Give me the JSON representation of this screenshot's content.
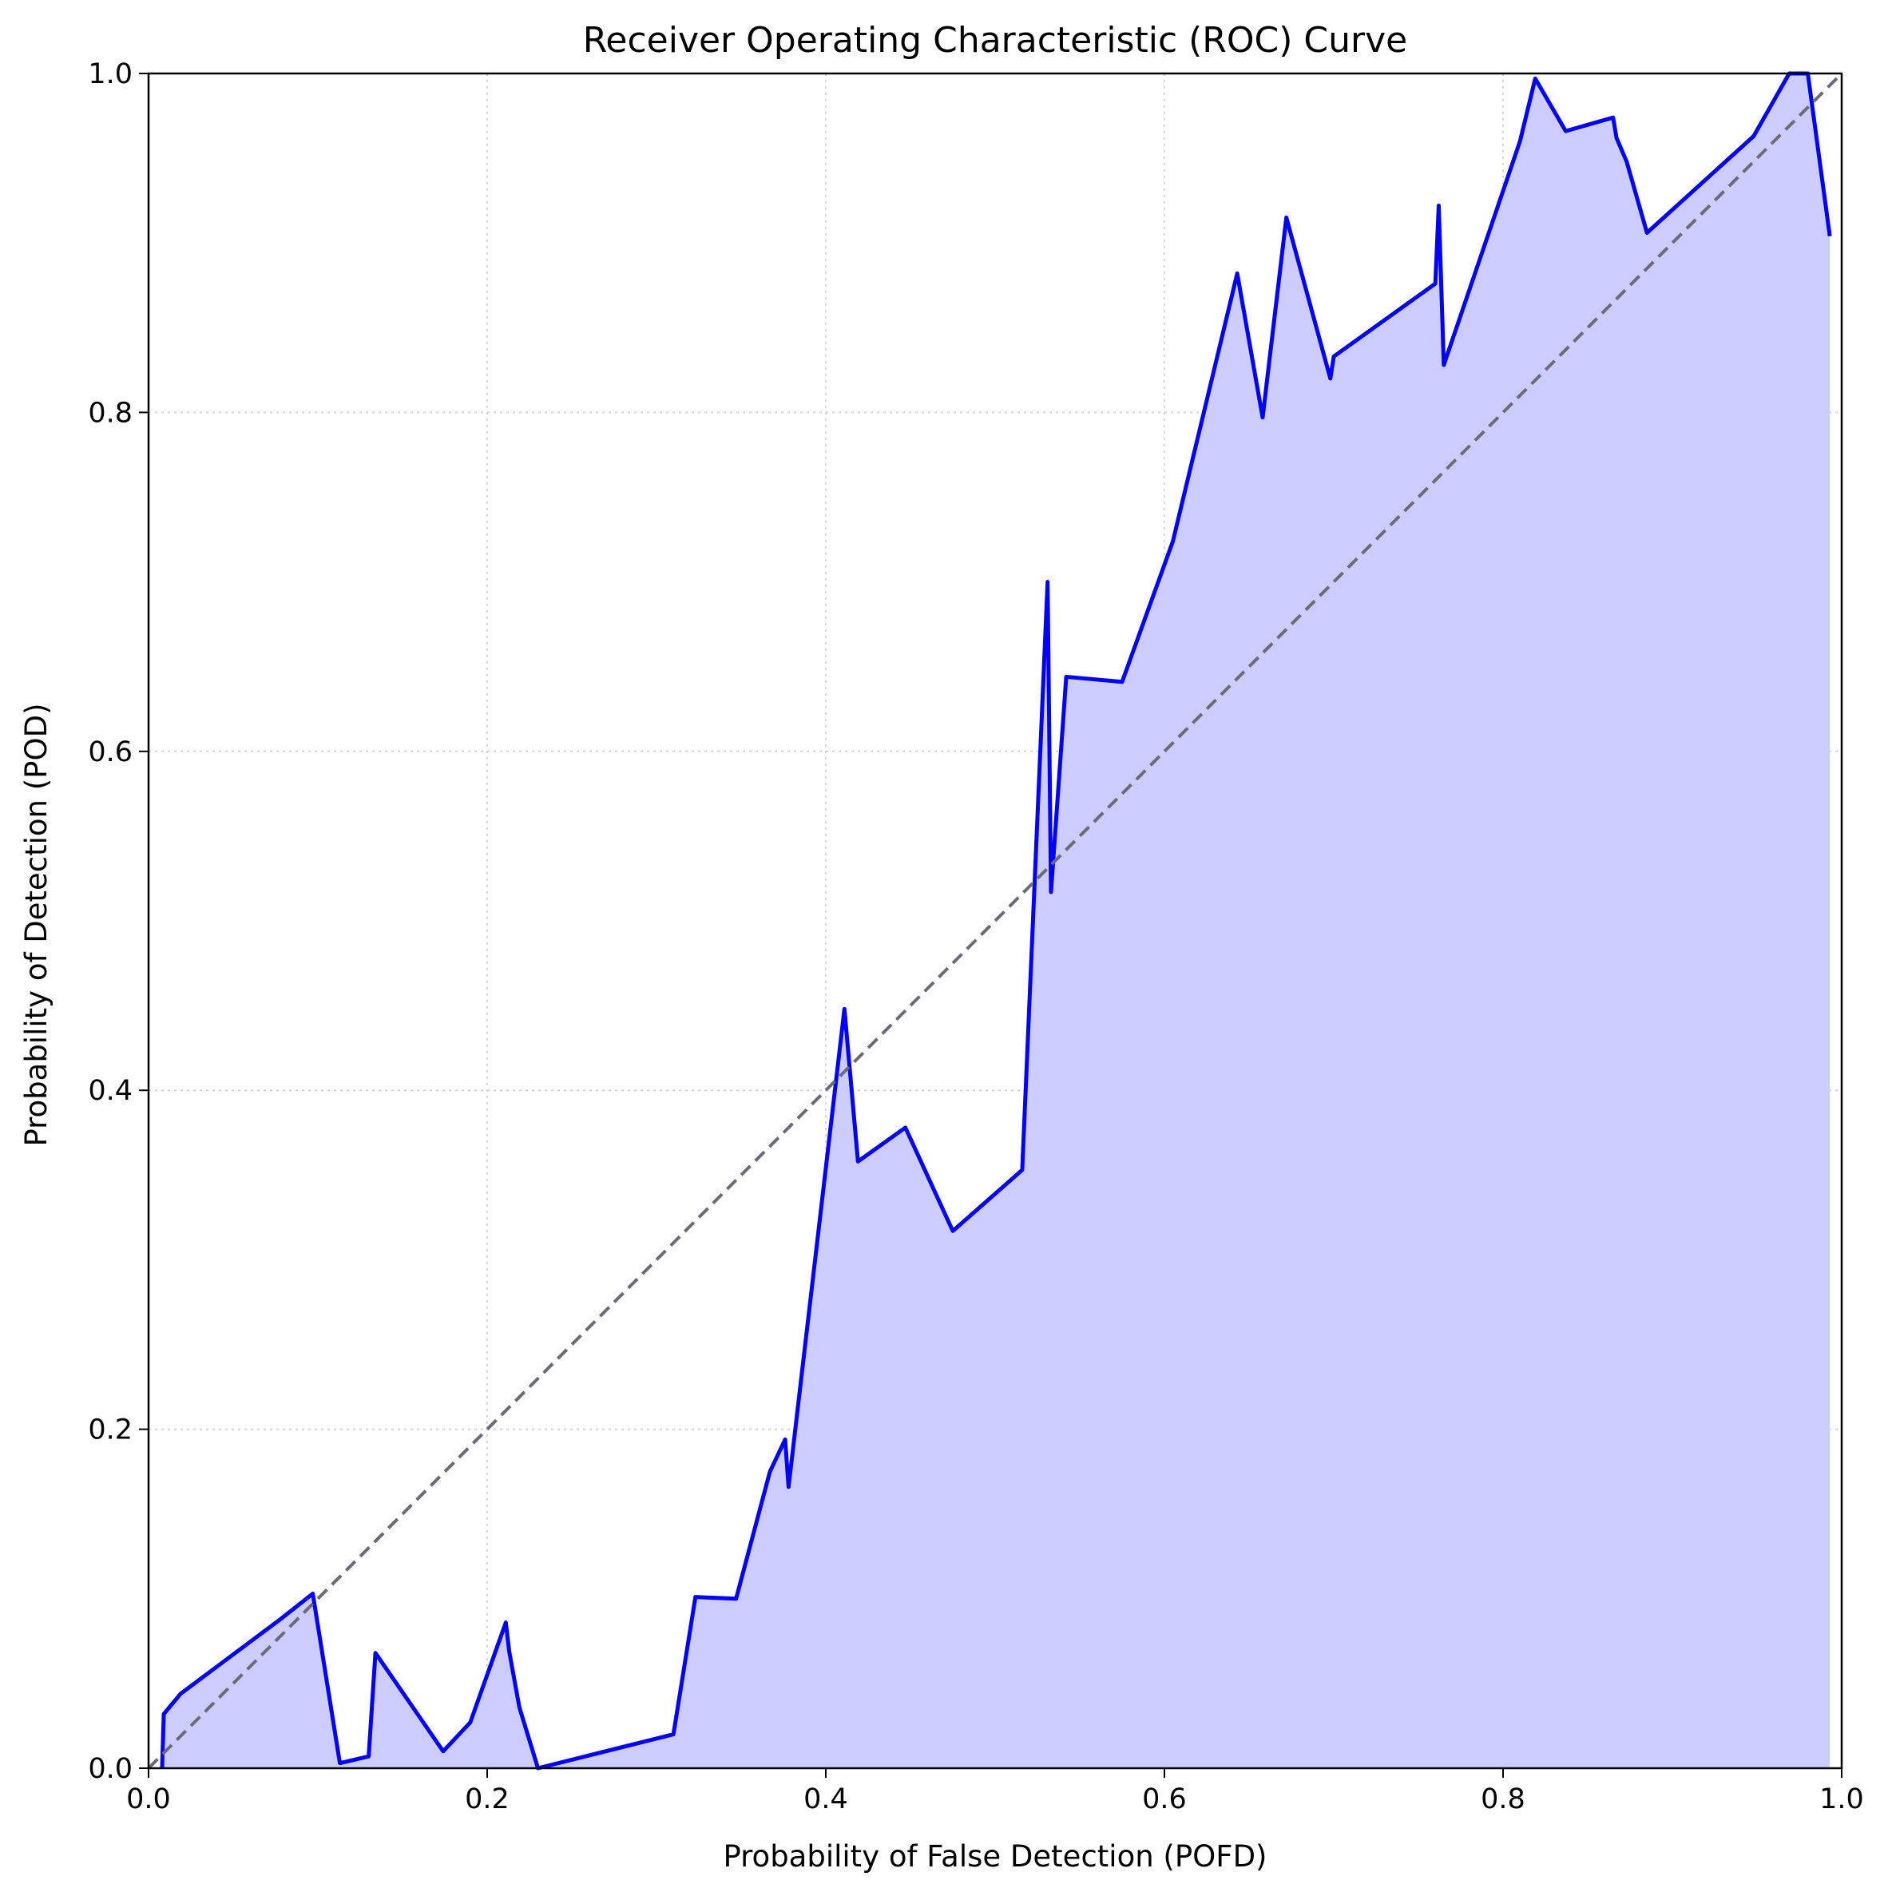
{
  "chart_data": {
    "type": "line",
    "title": "Receiver Operating Characteristic (ROC) Curve",
    "xlabel": "Probability of False Detection (POFD)",
    "ylabel": "Probability of Detection (POD)",
    "xlim": [
      0,
      1
    ],
    "ylim": [
      0,
      1
    ],
    "x_ticks": [
      "0.0",
      "0.2",
      "0.4",
      "0.6",
      "0.8",
      "1.0"
    ],
    "y_ticks": [
      "0.0",
      "0.2",
      "0.4",
      "0.6",
      "0.8",
      "1.0"
    ],
    "grid": true,
    "legend": false,
    "series": [
      {
        "style": "solid",
        "filled": true,
        "color": "#0000ff",
        "fill_color": "#ccccff",
        "x": [
          0.008,
          0.009,
          0.019,
          0.078,
          0.097,
          0.113,
          0.13,
          0.134,
          0.174,
          0.19,
          0.211,
          0.213,
          0.219,
          0.23,
          0.31,
          0.323,
          0.347,
          0.367,
          0.376,
          0.378,
          0.411,
          0.419,
          0.447,
          0.475,
          0.516,
          0.531,
          0.533,
          0.542,
          0.575,
          0.605,
          0.643,
          0.658,
          0.672,
          0.698,
          0.7,
          0.76,
          0.762,
          0.765,
          0.81,
          0.819,
          0.837,
          0.865,
          0.867,
          0.873,
          0.885,
          0.948,
          0.969,
          0.98,
          0.993
        ],
        "y": [
          0.0,
          0.032,
          0.044,
          0.088,
          0.103,
          0.003,
          0.007,
          0.068,
          0.01,
          0.027,
          0.086,
          0.069,
          0.036,
          0.0,
          0.02,
          0.101,
          0.1,
          0.175,
          0.194,
          0.166,
          0.448,
          0.358,
          0.378,
          0.317,
          0.353,
          0.7,
          0.517,
          0.644,
          0.641,
          0.724,
          0.882,
          0.797,
          0.915,
          0.82,
          0.833,
          0.876,
          0.922,
          0.828,
          0.96,
          0.997,
          0.966,
          0.974,
          0.962,
          0.948,
          0.906,
          0.963,
          1.0,
          1.0,
          0.904
        ]
      },
      {
        "style": "dashed",
        "color": "#6b6b78",
        "x": [
          0,
          1
        ],
        "y": [
          0,
          1
        ]
      }
    ],
    "colors": {
      "axis": "#000000",
      "grid": "#d4d4d4"
    }
  }
}
